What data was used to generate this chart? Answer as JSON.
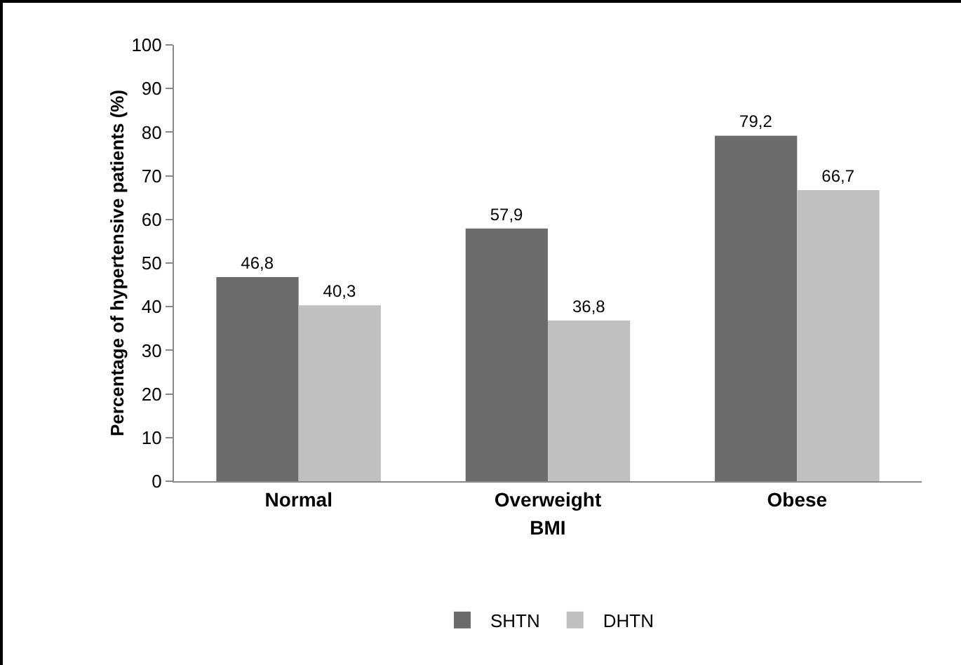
{
  "chart_data": {
    "type": "bar",
    "xlabel": "BMI",
    "ylabel": "Percentage of hypertensive patients (%)",
    "categories": [
      "Normal",
      "Overweight",
      "Obese"
    ],
    "series": [
      {
        "name": "SHTN",
        "color": "#6b6b6b",
        "values": [
          46.8,
          57.9,
          79.2
        ],
        "value_labels": [
          "46,8",
          "57,9",
          "79,2"
        ]
      },
      {
        "name": "DHTN",
        "color": "#c0c0c0",
        "values": [
          40.3,
          36.8,
          66.7
        ],
        "value_labels": [
          "40,3",
          "36,8",
          "66,7"
        ]
      }
    ],
    "ylim": [
      0,
      100
    ],
    "yticks": [
      0,
      10,
      20,
      30,
      40,
      50,
      60,
      70,
      80,
      90,
      100
    ],
    "grid": false,
    "legend": "bottom"
  }
}
